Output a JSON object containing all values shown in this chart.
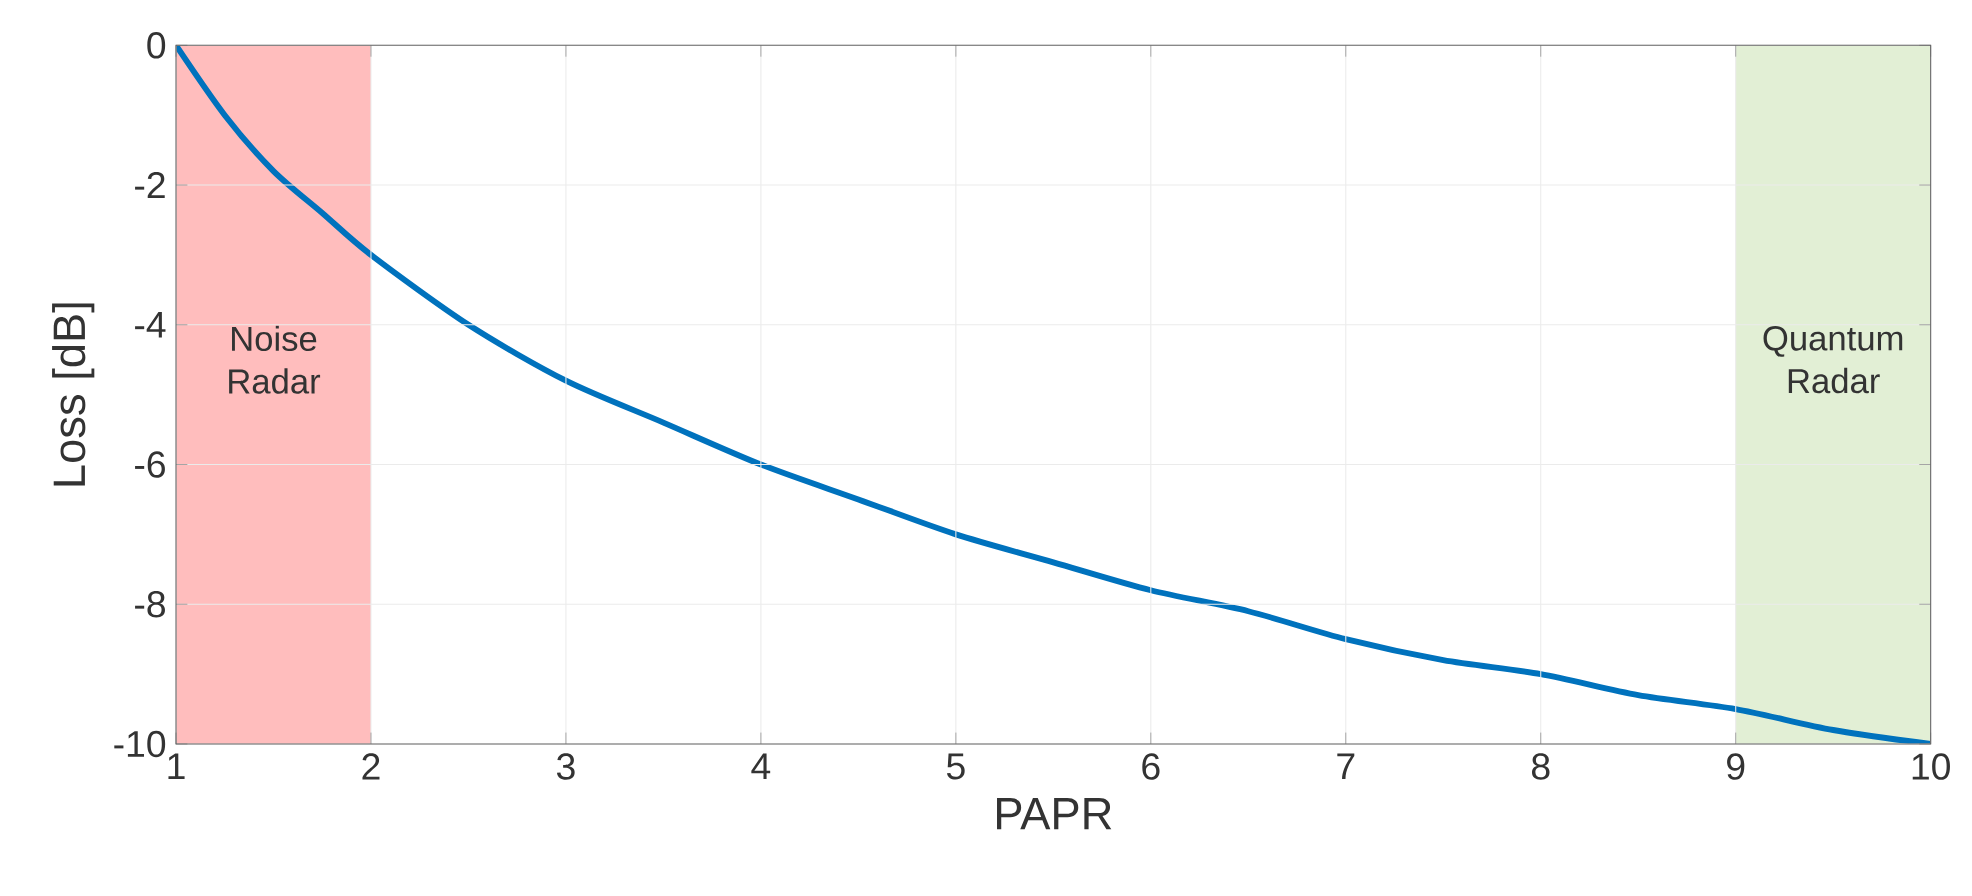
{
  "chart_data": {
    "type": "line",
    "xlabel": "PAPR",
    "ylabel": "Loss [dB]",
    "x": [
      1,
      1.25,
      1.5,
      1.75,
      2,
      2.5,
      3,
      3.5,
      4,
      4.5,
      5,
      5.5,
      6,
      6.5,
      7,
      7.5,
      8,
      8.5,
      9,
      9.5,
      10
    ],
    "series": [
      {
        "color": "#0072bd",
        "values": [
          0,
          -1.0,
          -1.8,
          -2.4,
          -3.0,
          -4.0,
          -4.8,
          -5.4,
          -6.0,
          -6.5,
          -7.0,
          -7.4,
          -7.8,
          -8.1,
          -8.5,
          -8.8,
          -9.0,
          -9.3,
          -9.5,
          -9.8,
          -10
        ]
      }
    ],
    "xlim": [
      1,
      10
    ],
    "ylim": [
      -10,
      0
    ],
    "xticks": [
      1,
      2,
      3,
      4,
      5,
      6,
      7,
      8,
      9,
      10
    ],
    "yticks": [
      -10,
      -8,
      -6,
      -4,
      -2,
      0
    ],
    "grid": true,
    "bands": [
      {
        "axis": "x",
        "from": 1,
        "to": 2,
        "label": "Noise Radar",
        "color": "#ffbdbd"
      },
      {
        "axis": "x",
        "from": 9,
        "to": 10,
        "label": "Quantum Radar",
        "color": "#e2efd5"
      }
    ]
  }
}
